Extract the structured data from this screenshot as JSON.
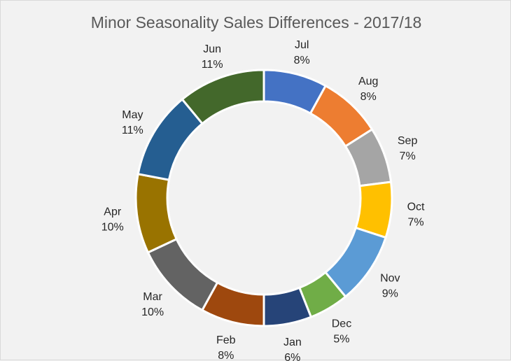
{
  "chart_data": {
    "type": "pie",
    "variant": "donut",
    "title": "Minor Seasonality Sales Differences - 2017/18",
    "categories": [
      "Jul",
      "Aug",
      "Sep",
      "Oct",
      "Nov",
      "Dec",
      "Jan",
      "Feb",
      "Mar",
      "Apr",
      "May",
      "Jun"
    ],
    "values": [
      8,
      8,
      7,
      7,
      9,
      5,
      6,
      8,
      10,
      10,
      11,
      11
    ],
    "value_labels": [
      "8%",
      "8%",
      "7%",
      "7%",
      "9%",
      "5%",
      "6%",
      "8%",
      "10%",
      "10%",
      "11%",
      "11%"
    ],
    "colors": [
      "#4472c4",
      "#ed7d31",
      "#a5a5a5",
      "#ffc000",
      "#5b9bd5",
      "#70ad47",
      "#264478",
      "#9e480e",
      "#636363",
      "#997300",
      "#255e91",
      "#43682b"
    ],
    "legend": "none",
    "data_labels": "outside"
  }
}
